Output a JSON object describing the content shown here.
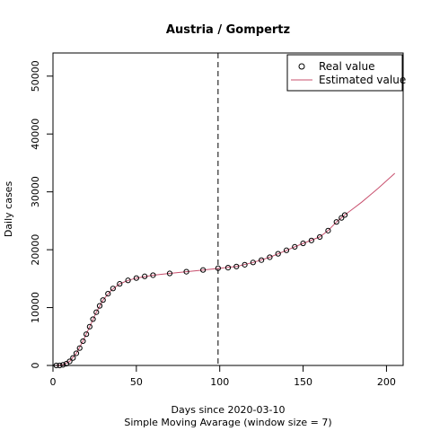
{
  "chart_data": {
    "type": "scatter",
    "title": "Austria / Gompertz",
    "xlabel": "Days since 2020-03-10",
    "subtitle": "Simple Moving Avarage (window size = 7)",
    "ylabel": "Daily cases",
    "xlim": [
      0,
      210
    ],
    "ylim": [
      0,
      54000
    ],
    "x_ticks": [
      0,
      50,
      100,
      150,
      200
    ],
    "y_ticks": [
      0,
      10000,
      20000,
      30000,
      40000,
      50000
    ],
    "x_tick_labels": [
      "0",
      "50",
      "100",
      "150",
      "200"
    ],
    "y_tick_labels": [
      "0",
      "10000",
      "20000",
      "30000",
      "40000",
      "50000"
    ],
    "vline_x": 99,
    "grid": false,
    "legend_position": "top-right",
    "real_color": "#000000",
    "estimated_color": "#c8506e",
    "series": [
      {
        "name": "Real value",
        "kind": "points",
        "x": [
          2,
          4,
          6,
          8,
          10,
          12,
          14,
          16,
          18,
          20,
          22,
          24,
          26,
          28,
          30,
          33,
          36,
          40,
          45,
          50,
          55,
          60,
          70,
          80,
          90,
          99,
          105,
          110,
          115,
          120,
          125,
          130,
          135,
          140,
          145,
          150,
          155,
          160,
          165,
          170,
          173,
          175
        ],
        "y": [
          0,
          0,
          100,
          300,
          700,
          1300,
          2100,
          3000,
          4200,
          5400,
          6700,
          8000,
          9200,
          10300,
          11300,
          12400,
          13300,
          14100,
          14700,
          15100,
          15400,
          15600,
          15900,
          16200,
          16500,
          16800,
          16900,
          17100,
          17400,
          17800,
          18200,
          18700,
          19300,
          19900,
          20500,
          21100,
          21600,
          22200,
          23300,
          24800,
          25500,
          26000
        ]
      },
      {
        "name": "Estimated value",
        "kind": "line",
        "x": [
          2,
          6,
          10,
          14,
          18,
          22,
          26,
          30,
          35,
          40,
          45,
          50,
          60,
          70,
          80,
          90,
          100,
          110,
          120,
          130,
          140,
          150,
          160,
          165,
          170,
          175,
          180,
          185,
          190,
          195,
          200,
          205
        ],
        "y": [
          0,
          100,
          700,
          2100,
          4200,
          6700,
          9200,
          11300,
          13000,
          14100,
          14700,
          15100,
          15600,
          15900,
          16200,
          16500,
          16800,
          17100,
          17800,
          18700,
          19900,
          21100,
          22200,
          23300,
          24800,
          26000,
          27100,
          28200,
          29400,
          30600,
          31900,
          33200
        ]
      }
    ]
  }
}
